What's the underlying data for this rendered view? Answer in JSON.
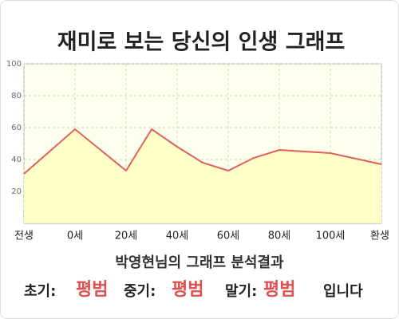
{
  "chart_data": {
    "type": "line",
    "title": "재미로 보는 당신의 인생 그래프",
    "x": [
      -20,
      0,
      20,
      30,
      40,
      50,
      60,
      70,
      80,
      100,
      120
    ],
    "values": [
      31,
      59,
      33,
      59,
      48,
      38,
      33,
      41,
      46,
      44,
      37
    ],
    "color": "#e06060",
    "fill": "#ffffc0",
    "xlim": [
      -20,
      120
    ],
    "xticks": [
      {
        "value": -20,
        "label": "전생"
      },
      {
        "value": 0,
        "label": "0세"
      },
      {
        "value": 20,
        "label": "20세"
      },
      {
        "value": 40,
        "label": "40세"
      },
      {
        "value": 60,
        "label": "60세"
      },
      {
        "value": 80,
        "label": "80세"
      },
      {
        "value": 100,
        "label": "100세"
      },
      {
        "value": 120,
        "label": "환생"
      }
    ],
    "ylim": [
      0,
      100
    ],
    "yticks": [
      20,
      40,
      60,
      80,
      100
    ],
    "grid": true
  },
  "result": {
    "heading": "박영현님의 그래프 분석결과",
    "items": [
      {
        "label": "초기:",
        "value": "평범"
      },
      {
        "label": "중기:",
        "value": "평범"
      },
      {
        "label": "말기:",
        "value": "평범"
      }
    ],
    "suffix": "입니다"
  }
}
